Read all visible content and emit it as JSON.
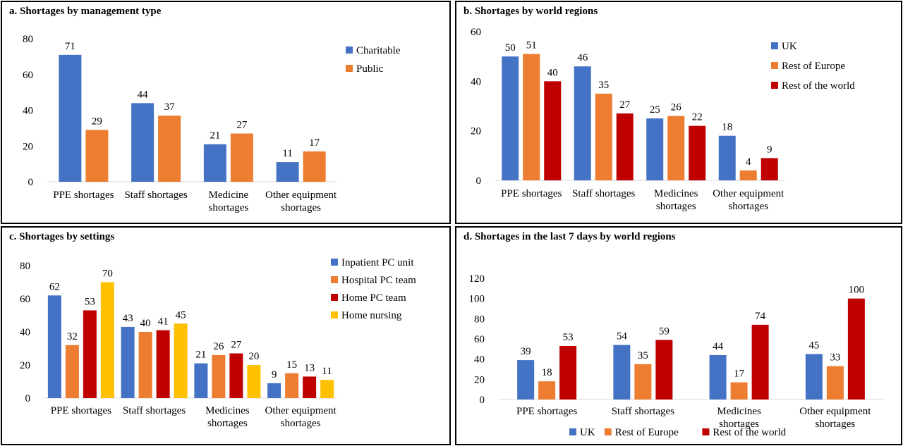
{
  "chart_data": [
    {
      "type": "bar",
      "title": "a. Shortages by management type",
      "categories": [
        [
          "PPE shortages"
        ],
        [
          "Staff shortages"
        ],
        [
          "Medicine",
          "shortages"
        ],
        [
          "Other equipment",
          "shortages"
        ]
      ],
      "series": [
        {
          "name": "Charitable",
          "values": [
            71,
            44,
            21,
            11
          ],
          "color": "#4472C4"
        },
        {
          "name": "Public",
          "values": [
            29,
            37,
            27,
            17
          ],
          "color": "#ED7D31"
        }
      ],
      "ylim": [
        0,
        80
      ],
      "yticks": [
        0,
        20,
        40,
        60,
        80
      ],
      "grid": false,
      "legend": "right"
    },
    {
      "type": "bar",
      "title": "b. Shortages by world regions",
      "categories": [
        [
          "PPE shortages"
        ],
        [
          "Staff shortages"
        ],
        [
          "Medicines",
          "shortages"
        ],
        [
          "Other equipment",
          "shortages"
        ]
      ],
      "series": [
        {
          "name": "UK",
          "values": [
            50,
            46,
            25,
            18
          ],
          "color": "#4472C4"
        },
        {
          "name": "Rest of Europe",
          "values": [
            51,
            35,
            26,
            4
          ],
          "color": "#ED7D31"
        },
        {
          "name": "Rest of the world",
          "values": [
            40,
            27,
            22,
            9
          ],
          "color": "#C00000"
        }
      ],
      "ylim": [
        0,
        60
      ],
      "yticks": [
        0,
        20,
        40,
        60
      ],
      "grid": false,
      "legend": "right"
    },
    {
      "type": "bar",
      "title": "c. Shortages by settings",
      "categories": [
        [
          "PPE shortages"
        ],
        [
          "Staff shortages"
        ],
        [
          "Medicines",
          "shortages"
        ],
        [
          "Other equipment",
          "shortages"
        ]
      ],
      "series": [
        {
          "name": "Inpatient PC unit",
          "values": [
            62,
            43,
            21,
            9
          ],
          "color": "#4472C4"
        },
        {
          "name": "Hospital PC team",
          "values": [
            32,
            40,
            26,
            15
          ],
          "color": "#ED7D31"
        },
        {
          "name": "Home PC team",
          "values": [
            53,
            41,
            27,
            13
          ],
          "color": "#C00000"
        },
        {
          "name": "Home nursing",
          "values": [
            70,
            45,
            20,
            11
          ],
          "color": "#FFC000"
        }
      ],
      "ylim": [
        0,
        80
      ],
      "yticks": [
        0,
        20,
        40,
        60,
        80
      ],
      "grid": false,
      "legend": "right"
    },
    {
      "type": "bar",
      "title": "d. Shortages in the last 7 days by world regions",
      "categories": [
        [
          "PPE shortages"
        ],
        [
          "Staff shortages"
        ],
        [
          "Medicines",
          "shortages"
        ],
        [
          "Other equipment",
          "shortages"
        ]
      ],
      "series": [
        {
          "name": "UK",
          "values": [
            39,
            54,
            44,
            45
          ],
          "color": "#4472C4"
        },
        {
          "name": "Rest of Europe",
          "values": [
            18,
            35,
            17,
            33
          ],
          "color": "#ED7D31"
        },
        {
          "name": "Rest of the world",
          "values": [
            53,
            59,
            74,
            100
          ],
          "color": "#C00000"
        }
      ],
      "ylim": [
        0,
        120
      ],
      "yticks": [
        0,
        20,
        40,
        60,
        80,
        100,
        120
      ],
      "grid": false,
      "legend": "bottom"
    }
  ]
}
